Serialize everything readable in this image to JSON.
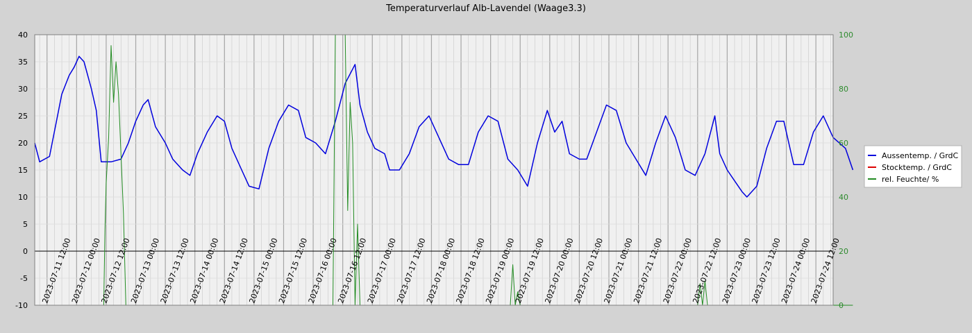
{
  "chart_data": {
    "type": "line",
    "title": "Temperaturverlauf Alb-Lavendel (Waage3.3)",
    "x_tick_labels": [
      "2023-07-11 12:00",
      "2023-07-12 00:00",
      "2023-07-12 12:00",
      "2023-07-13 00:00",
      "2023-07-13 12:00",
      "2023-07-14 00:00",
      "2023-07-14 12:00",
      "2023-07-15 00:00",
      "2023-07-15 12:00",
      "2023-07-16 00:00",
      "2023-07-16 12:00",
      "2023-07-17 00:00",
      "2023-07-17 12:00",
      "2023-07-18 00:00",
      "2023-07-18 12:00",
      "2023-07-19 00:00",
      "2023-07-19 12:00",
      "2023-07-20 00:00",
      "2023-07-20 12:00",
      "2023-07-21 00:00",
      "2023-07-21 12:00",
      "2023-07-22 00:00",
      "2023-07-22 12:00",
      "2023-07-23 00:00",
      "2023-07-23 12:00",
      "2023-07-24 00:00",
      "2023-07-24 12:00"
    ],
    "x_range": [
      "2023-07-11 07:00",
      "2023-07-24 19:00"
    ],
    "y_left": {
      "min": -10,
      "max": 40,
      "ticks": [
        40,
        35,
        30,
        25,
        20,
        15,
        10,
        5,
        0,
        -5,
        -10
      ]
    },
    "y_right": {
      "min": 0,
      "max": 100,
      "ticks": [
        100,
        80,
        60,
        40,
        20,
        0
      ]
    },
    "grid": true,
    "legend_position": "right",
    "series": [
      {
        "name": "Aussentemp. / GrdC",
        "color": "#0000dd",
        "axis": "left",
        "points": [
          [
            "2023-07-11 07:00",
            20.0
          ],
          [
            "2023-07-11 09:00",
            16.5
          ],
          [
            "2023-07-11 13:00",
            17.5
          ],
          [
            "2023-07-11 18:00",
            29
          ],
          [
            "2023-07-11 21:00",
            32.5
          ],
          [
            "2023-07-11 23:00",
            34
          ],
          [
            "2023-07-12 01:00",
            36
          ],
          [
            "2023-07-12 03:00",
            35
          ],
          [
            "2023-07-12 06:00",
            30
          ],
          [
            "2023-07-12 08:00",
            26
          ],
          [
            "2023-07-12 10:00",
            16.5
          ],
          [
            "2023-07-12 14:00",
            16.5
          ],
          [
            "2023-07-12 18:00",
            17
          ],
          [
            "2023-07-12 21:00",
            20
          ],
          [
            "2023-07-13 00:00",
            24
          ],
          [
            "2023-07-13 03:00",
            27
          ],
          [
            "2023-07-13 05:00",
            28
          ],
          [
            "2023-07-13 08:00",
            23
          ],
          [
            "2023-07-13 12:00",
            20
          ],
          [
            "2023-07-13 15:00",
            17
          ],
          [
            "2023-07-13 19:00",
            15
          ],
          [
            "2023-07-13 22:00",
            14
          ],
          [
            "2023-07-14 01:00",
            18
          ],
          [
            "2023-07-14 05:00",
            22
          ],
          [
            "2023-07-14 09:00",
            25
          ],
          [
            "2023-07-14 12:00",
            24
          ],
          [
            "2023-07-14 15:00",
            19
          ],
          [
            "2023-07-14 19:00",
            15
          ],
          [
            "2023-07-14 22:00",
            12
          ],
          [
            "2023-07-15 02:00",
            11.5
          ],
          [
            "2023-07-15 06:00",
            19
          ],
          [
            "2023-07-15 10:00",
            24
          ],
          [
            "2023-07-15 14:00",
            27
          ],
          [
            "2023-07-15 18:00",
            26
          ],
          [
            "2023-07-15 21:00",
            21
          ],
          [
            "2023-07-16 01:00",
            20
          ],
          [
            "2023-07-16 05:00",
            18
          ],
          [
            "2023-07-16 09:00",
            24
          ],
          [
            "2023-07-16 13:00",
            31
          ],
          [
            "2023-07-16 17:00",
            34.5
          ],
          [
            "2023-07-16 19:00",
            27
          ],
          [
            "2023-07-16 22:00",
            22
          ],
          [
            "2023-07-17 01:00",
            19
          ],
          [
            "2023-07-17 05:00",
            18
          ],
          [
            "2023-07-17 07:00",
            15
          ],
          [
            "2023-07-17 11:00",
            15
          ],
          [
            "2023-07-17 15:00",
            18
          ],
          [
            "2023-07-17 19:00",
            23
          ],
          [
            "2023-07-17 23:00",
            25
          ],
          [
            "2023-07-18 03:00",
            21
          ],
          [
            "2023-07-18 07:00",
            17
          ],
          [
            "2023-07-18 11:00",
            16
          ],
          [
            "2023-07-18 15:00",
            16
          ],
          [
            "2023-07-18 19:00",
            22
          ],
          [
            "2023-07-18 23:00",
            25
          ],
          [
            "2023-07-19 03:00",
            24
          ],
          [
            "2023-07-19 07:00",
            17
          ],
          [
            "2023-07-19 11:00",
            15
          ],
          [
            "2023-07-19 15:00",
            12
          ],
          [
            "2023-07-19 19:00",
            20
          ],
          [
            "2023-07-19 23:00",
            26
          ],
          [
            "2023-07-20 02:00",
            22
          ],
          [
            "2023-07-20 05:00",
            24
          ],
          [
            "2023-07-20 08:00",
            18
          ],
          [
            "2023-07-20 12:00",
            17
          ],
          [
            "2023-07-20 15:00",
            17
          ],
          [
            "2023-07-20 19:00",
            22
          ],
          [
            "2023-07-20 23:00",
            27
          ],
          [
            "2023-07-21 03:00",
            26
          ],
          [
            "2023-07-21 07:00",
            20
          ],
          [
            "2023-07-21 11:00",
            17
          ],
          [
            "2023-07-21 15:00",
            14
          ],
          [
            "2023-07-21 19:00",
            20
          ],
          [
            "2023-07-21 23:00",
            25
          ],
          [
            "2023-07-22 03:00",
            21
          ],
          [
            "2023-07-22 07:00",
            15
          ],
          [
            "2023-07-22 11:00",
            14
          ],
          [
            "2023-07-22 15:00",
            18
          ],
          [
            "2023-07-22 19:00",
            25
          ],
          [
            "2023-07-22 21:00",
            18
          ],
          [
            "2023-07-23 00:00",
            15
          ],
          [
            "2023-07-23 03:00",
            13
          ],
          [
            "2023-07-23 06:00",
            11
          ],
          [
            "2023-07-23 08:00",
            10
          ],
          [
            "2023-07-23 12:00",
            12
          ],
          [
            "2023-07-23 16:00",
            19
          ],
          [
            "2023-07-23 20:00",
            24
          ],
          [
            "2023-07-23 23:00",
            24
          ],
          [
            "2023-07-24 03:00",
            16
          ],
          [
            "2023-07-24 07:00",
            16
          ],
          [
            "2023-07-24 11:00",
            22
          ],
          [
            "2023-07-24 15:00",
            25
          ],
          [
            "2023-07-24 19:00",
            21
          ],
          [
            "2023-07-25 00:00",
            19
          ],
          [
            "2023-07-25 03:00",
            15
          ]
        ]
      },
      {
        "name": "Stocktemp.  / GrdC",
        "color": "#dd0000",
        "axis": "left",
        "points": []
      },
      {
        "name": "rel. Feuchte/ %",
        "color": "#228b22",
        "axis": "right",
        "points": [
          [
            "2023-07-11 07:00",
            0
          ],
          [
            "2023-07-12 11:00",
            0
          ],
          [
            "2023-07-12 11:30",
            28
          ],
          [
            "2023-07-12 12:00",
            45
          ],
          [
            "2023-07-12 13:00",
            62
          ],
          [
            "2023-07-12 14:00",
            96
          ],
          [
            "2023-07-12 15:00",
            75
          ],
          [
            "2023-07-12 16:00",
            90
          ],
          [
            "2023-07-12 17:00",
            78
          ],
          [
            "2023-07-12 19:00",
            34
          ],
          [
            "2023-07-12 20:00",
            0
          ],
          [
            "2023-07-16 08:00",
            0
          ],
          [
            "2023-07-16 09:00",
            100
          ],
          [
            "2023-07-16 13:00",
            100
          ],
          [
            "2023-07-16 14:00",
            35
          ],
          [
            "2023-07-16 15:00",
            75
          ],
          [
            "2023-07-16 16:00",
            60
          ],
          [
            "2023-07-16 17:00",
            0
          ],
          [
            "2023-07-16 18:00",
            30
          ],
          [
            "2023-07-16 19:00",
            0
          ],
          [
            "2023-07-19 08:00",
            0
          ],
          [
            "2023-07-19 09:00",
            15
          ],
          [
            "2023-07-19 10:00",
            0
          ],
          [
            "2023-07-19 11:00",
            5
          ],
          [
            "2023-07-19 12:00",
            0
          ],
          [
            "2023-07-22 12:00",
            0
          ],
          [
            "2023-07-22 13:00",
            8
          ],
          [
            "2023-07-22 14:00",
            0
          ],
          [
            "2023-07-22 15:00",
            9
          ],
          [
            "2023-07-22 16:00",
            0
          ],
          [
            "2023-07-25 03:00",
            0
          ]
        ]
      }
    ]
  }
}
